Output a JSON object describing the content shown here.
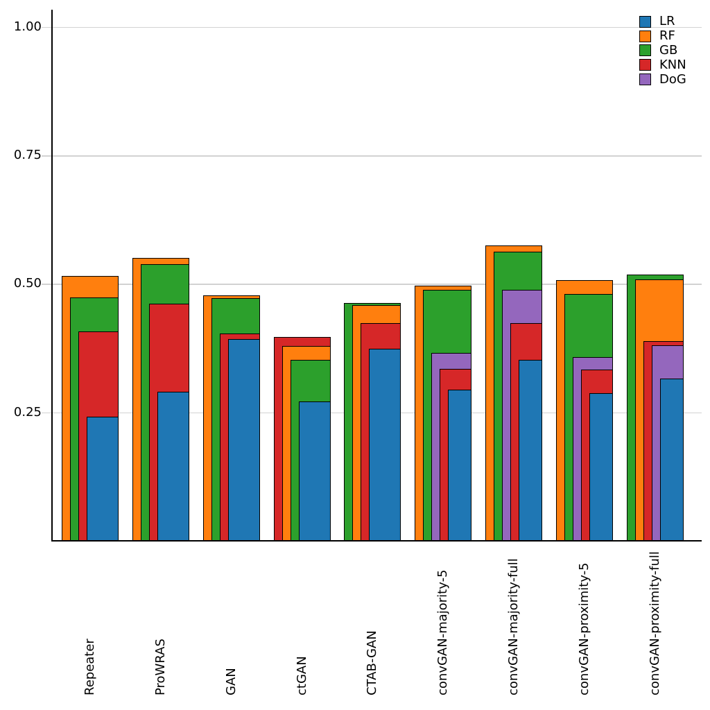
{
  "chart_data": {
    "type": "bar",
    "variant": "nested-overlay (bars per group sorted tallest-in-back, right-aligned, narrowing toward front)",
    "title": "",
    "xlabel": "",
    "ylabel": "",
    "grid": "horizontal",
    "legend_position": "top-right",
    "bar_outline_color": "#000000",
    "ylim": [
      0,
      1.03
    ],
    "yticks": [
      {
        "value": 0.25,
        "label": "0.25"
      },
      {
        "value": 0.5,
        "label": "0.50"
      },
      {
        "value": 0.75,
        "label": "0.75"
      },
      {
        "value": 1.0,
        "label": "1.00"
      }
    ],
    "categories": [
      "Repeater",
      "ProWRAS",
      "GAN",
      "ctGAN",
      "CTAB-GAN",
      "convGAN-majority-5",
      "convGAN-majority-full",
      "convGAN-proximity-5",
      "convGAN-proximity-full"
    ],
    "series": [
      {
        "name": "LR",
        "color": "#1f77b4",
        "values": [
          0.242,
          0.29,
          0.392,
          0.271,
          0.373,
          0.294,
          0.352,
          0.288,
          0.315
        ]
      },
      {
        "name": "RF",
        "color": "#ff7f0e",
        "values": [
          0.515,
          0.551,
          0.478,
          0.379,
          0.458,
          0.497,
          0.574,
          0.507,
          0.508
        ]
      },
      {
        "name": "GB",
        "color": "#2ca02c",
        "values": [
          0.473,
          0.538,
          0.472,
          0.352,
          0.463,
          0.488,
          0.562,
          0.48,
          0.518
        ]
      },
      {
        "name": "KNN",
        "color": "#d62728",
        "values": [
          0.408,
          0.462,
          0.404,
          0.397,
          0.424,
          0.335,
          0.424,
          0.333,
          0.388
        ]
      },
      {
        "name": "DoG",
        "color": "#9467bd",
        "values": [
          null,
          null,
          null,
          null,
          null,
          0.366,
          0.489,
          0.357,
          0.38
        ]
      }
    ]
  }
}
